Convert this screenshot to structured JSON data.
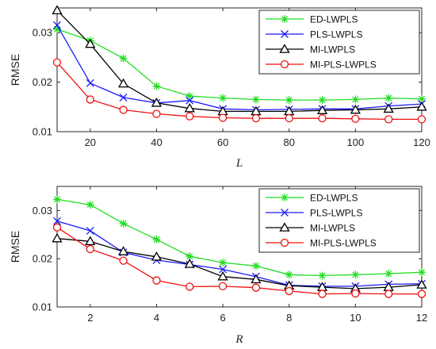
{
  "chart_data": [
    {
      "type": "line",
      "xlabel": "L",
      "ylabel": "RMSE",
      "xlim": [
        10,
        120
      ],
      "ylim": [
        0.01,
        0.035
      ],
      "xticks": [
        20,
        40,
        60,
        80,
        100,
        120
      ],
      "yticks": [
        0.01,
        0.02,
        0.03
      ],
      "xtick_labels": [
        "20",
        "40",
        "60",
        "80",
        "100",
        "120"
      ],
      "ytick_labels": [
        "0.01",
        "0.02",
        "0.03"
      ],
      "legend_position": "top-right",
      "grid": false,
      "x": [
        10,
        20,
        30,
        40,
        50,
        60,
        70,
        80,
        90,
        100,
        110,
        120
      ],
      "series": [
        {
          "name": "ED-LWPLS",
          "color": "#22dd22",
          "marker": "asterisk",
          "values": [
            0.0307,
            0.0284,
            0.0248,
            0.0192,
            0.0172,
            0.0168,
            0.0165,
            0.0164,
            0.0164,
            0.0165,
            0.0168,
            0.0166
          ]
        },
        {
          "name": "PLS-LWPLS",
          "color": "#1a1aff",
          "marker": "x",
          "values": [
            0.0315,
            0.0198,
            0.0169,
            0.0158,
            0.0163,
            0.0146,
            0.0144,
            0.0145,
            0.0146,
            0.0146,
            0.0152,
            0.0156
          ]
        },
        {
          "name": "MI-LWPLS",
          "color": "#000000",
          "marker": "triangle",
          "values": [
            0.0345,
            0.0277,
            0.0197,
            0.0158,
            0.0147,
            0.0141,
            0.0141,
            0.0141,
            0.0143,
            0.0144,
            0.0146,
            0.015
          ]
        },
        {
          "name": "MI-PLS-LWPLS",
          "color": "#ee1111",
          "marker": "circle",
          "values": [
            0.024,
            0.0165,
            0.0144,
            0.0136,
            0.0131,
            0.0128,
            0.0127,
            0.0127,
            0.0127,
            0.0126,
            0.0125,
            0.0125
          ]
        }
      ]
    },
    {
      "type": "line",
      "xlabel": "R",
      "ylabel": "RMSE",
      "xlim": [
        1,
        12
      ],
      "ylim": [
        0.01,
        0.035
      ],
      "xticks": [
        2,
        4,
        6,
        8,
        10,
        12
      ],
      "yticks": [
        0.01,
        0.02,
        0.03
      ],
      "xtick_labels": [
        "2",
        "4",
        "6",
        "8",
        "10",
        "12"
      ],
      "ytick_labels": [
        "0.01",
        "0.02",
        "0.03"
      ],
      "legend_position": "top-right",
      "grid": false,
      "x": [
        1,
        2,
        3,
        4,
        5,
        6,
        7,
        8,
        9,
        10,
        11,
        12
      ],
      "series": [
        {
          "name": "ED-LWPLS",
          "color": "#22dd22",
          "marker": "asterisk",
          "values": [
            0.0323,
            0.0312,
            0.0273,
            0.024,
            0.0205,
            0.0192,
            0.0185,
            0.0167,
            0.0165,
            0.0167,
            0.0169,
            0.0172
          ]
        },
        {
          "name": "PLS-LWPLS",
          "color": "#1a1aff",
          "marker": "x",
          "values": [
            0.0278,
            0.0258,
            0.0213,
            0.0197,
            0.0188,
            0.0178,
            0.0163,
            0.0145,
            0.0143,
            0.0143,
            0.0147,
            0.0148
          ]
        },
        {
          "name": "MI-LWPLS",
          "color": "#000000",
          "marker": "triangle",
          "values": [
            0.0242,
            0.0236,
            0.0215,
            0.0204,
            0.0189,
            0.0163,
            0.0157,
            0.0144,
            0.0141,
            0.0138,
            0.0141,
            0.0146
          ]
        },
        {
          "name": "MI-PLS-LWPLS",
          "color": "#ee1111",
          "marker": "circle",
          "values": [
            0.0265,
            0.022,
            0.0196,
            0.0155,
            0.0142,
            0.0143,
            0.014,
            0.0133,
            0.0127,
            0.0128,
            0.0127,
            0.0127
          ]
        }
      ]
    }
  ]
}
